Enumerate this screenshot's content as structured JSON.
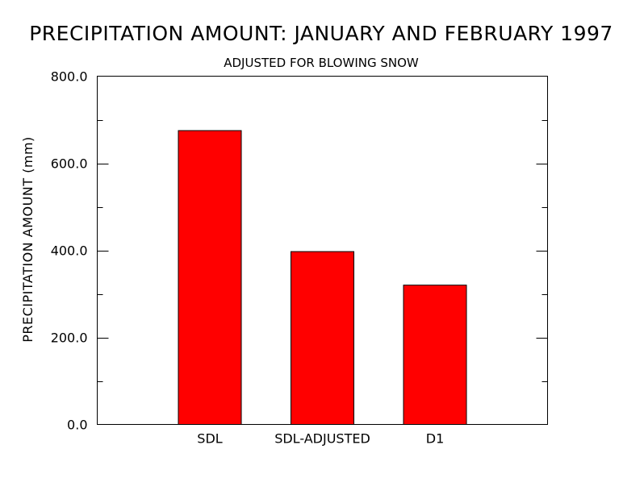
{
  "chart_data": {
    "type": "bar",
    "title": "PRECIPITATION AMOUNT: JANUARY AND FEBRUARY 1997",
    "subtitle": "ADJUSTED FOR BLOWING SNOW",
    "xlabel": "",
    "ylabel": "PRECIPITATION AMOUNT (mm)",
    "categories": [
      "SDL",
      "SDL-ADJUSTED",
      "D1"
    ],
    "values": [
      675,
      397,
      320
    ],
    "ylim": [
      0,
      800
    ],
    "yticks": [
      0,
      200,
      400,
      600,
      800
    ],
    "ytick_labels": [
      "0.0",
      "200.0",
      "400.0",
      "600.0",
      "800.0"
    ],
    "minor_ytick_step": 100,
    "grid": false,
    "legend": "none",
    "bar_color": "#ff0000",
    "bar_edge_color": "#000000"
  }
}
